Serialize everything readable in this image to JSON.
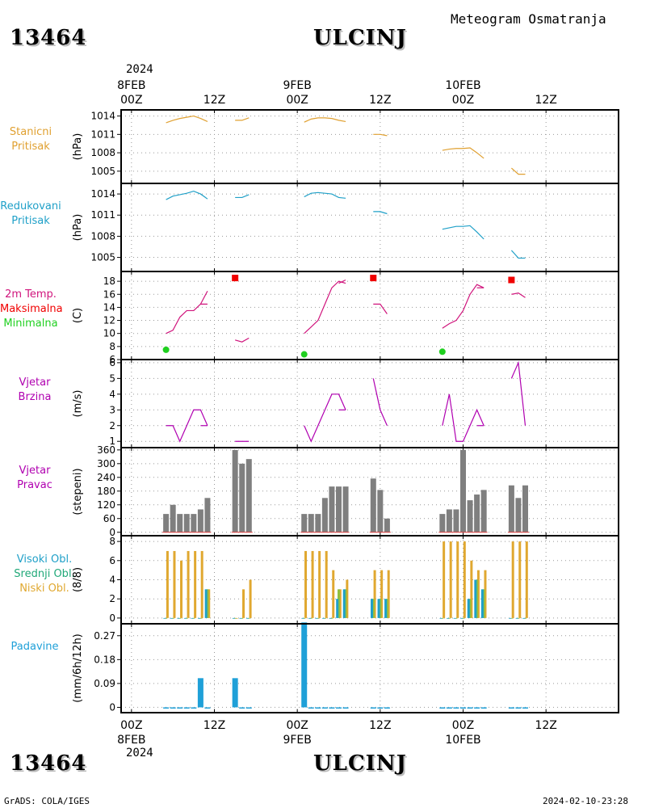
{
  "header": {
    "station_id": "13464",
    "station_name": "ULCINJ",
    "product": "Meteogram Osmatranja"
  },
  "footer": {
    "station_id": "13464",
    "station_name": "ULCINJ",
    "credit": "GrADS: COLA/IGES",
    "timestamp": "2024-02-10-23:28"
  },
  "time_axis": {
    "year": "2024",
    "top_dates": [
      "8FEB",
      "9FEB",
      "10FEB"
    ],
    "hour_labels": [
      "00Z",
      "12Z",
      "00Z",
      "12Z",
      "00Z",
      "12Z"
    ],
    "hour_values": [
      0,
      12,
      24,
      36,
      48,
      60
    ],
    "range": [
      -1.5,
      70.5
    ]
  },
  "colors": {
    "pressure": "#e0a030",
    "reduced": "#1fa0c8",
    "temp": "#d0147c",
    "tmax": "#f00000",
    "tmin": "#20d020",
    "wind": "#b000b0",
    "dir": "#7f7f7f",
    "high": "#1fa0c8",
    "mid": "#90c040",
    "low": "#e0a830",
    "precip": "#1fa0d8",
    "panel_text_pressure": "#e0a030",
    "panel_text_reduced": "#1fa0c8",
    "panel_text_wind": "#b000b0",
    "panel_text_dir": "#b000b0",
    "panel_text_precip": "#1fa0d8"
  },
  "panels": {
    "station_pressure": {
      "label1": "Stanicni",
      "label2": "Pritisak",
      "unit": "(hPa)"
    },
    "reduced_pressure": {
      "label1": "Redukovani",
      "label2": "Pritisak",
      "unit": "(hPa)"
    },
    "temperature": {
      "label1": "2m Temp.",
      "label2": "Maksimalna",
      "label3": "Minimalna",
      "unit": "(C)"
    },
    "wind_speed": {
      "label1": "Vjetar",
      "label2": "Brzina",
      "unit": "(m/s)"
    },
    "wind_dir": {
      "label1": "Vjetar",
      "label2": "Pravac",
      "unit": "(stepeni)"
    },
    "clouds": {
      "label1": "Visoki Obl.",
      "label2": "Srednji Obl.",
      "label3": "Niski Obl.",
      "unit": "(8/8)"
    },
    "precip": {
      "label1": "Padavine",
      "unit": "(mm/6h/12h)"
    }
  },
  "chart_data": [
    {
      "type": "line",
      "name": "station_pressure",
      "ylim": [
        1003.0,
        1015.0
      ],
      "ticks": [
        1005,
        1008,
        1011,
        1014
      ],
      "segments": [
        {
          "x": [
            5,
            6,
            7,
            8,
            9,
            10,
            11
          ],
          "y": [
            1012.9,
            1013.3,
            1013.6,
            1013.8,
            1014.0,
            1013.6,
            1013.1
          ]
        },
        {
          "x": [
            15,
            16,
            17
          ],
          "y": [
            1013.3,
            1013.3,
            1013.7
          ]
        },
        {
          "x": [
            25,
            26,
            27,
            28,
            29,
            30,
            31
          ],
          "y": [
            1013.0,
            1013.5,
            1013.7,
            1013.7,
            1013.6,
            1013.3,
            1013.1
          ]
        },
        {
          "x": [
            35,
            36,
            37
          ],
          "y": [
            1011.0,
            1011.0,
            1010.8
          ]
        },
        {
          "x": [
            45,
            46,
            47,
            48,
            49,
            50,
            51
          ],
          "y": [
            1008.4,
            1008.6,
            1008.7,
            1008.7,
            1008.8,
            1008.0,
            1007.1
          ]
        },
        {
          "x": [
            55,
            56,
            57
          ],
          "y": [
            1005.5,
            1004.5,
            1004.5
          ]
        }
      ]
    },
    {
      "type": "line",
      "name": "reduced_pressure",
      "ylim": [
        1003.0,
        1015.5
      ],
      "ticks": [
        1005,
        1008,
        1011,
        1014
      ],
      "segments": [
        {
          "x": [
            5,
            6,
            7,
            8,
            9,
            10,
            11
          ],
          "y": [
            1013.2,
            1013.7,
            1013.9,
            1014.1,
            1014.4,
            1014.0,
            1013.3
          ]
        },
        {
          "x": [
            15,
            16,
            17
          ],
          "y": [
            1013.5,
            1013.5,
            1013.9
          ]
        },
        {
          "x": [
            25,
            26,
            27,
            28,
            29,
            30,
            31
          ],
          "y": [
            1013.6,
            1014.1,
            1014.2,
            1014.1,
            1014.0,
            1013.5,
            1013.4
          ]
        },
        {
          "x": [
            35,
            36,
            37
          ],
          "y": [
            1011.5,
            1011.5,
            1011.2
          ]
        },
        {
          "x": [
            45,
            46,
            47,
            48,
            49,
            50,
            51
          ],
          "y": [
            1009.0,
            1009.2,
            1009.4,
            1009.4,
            1009.5,
            1008.6,
            1007.6
          ]
        },
        {
          "x": [
            55,
            56,
            57
          ],
          "y": [
            1006.0,
            1004.9,
            1004.9
          ]
        }
      ]
    },
    {
      "type": "line",
      "name": "temperature",
      "ylim": [
        6,
        19.5
      ],
      "ticks": [
        6,
        8,
        10,
        12,
        14,
        16,
        18
      ],
      "segments": [
        {
          "x": [
            5,
            6,
            7,
            8,
            9,
            10,
            11
          ],
          "y": [
            10.0,
            10.5,
            12.5,
            13.5,
            13.5,
            14.5,
            14.5
          ]
        },
        {
          "x": [
            10,
            11
          ],
          "y": [
            14.5,
            16.5
          ]
        },
        {
          "x": [
            15,
            16,
            17
          ],
          "y": [
            9.0,
            8.7,
            9.3
          ]
        },
        {
          "x": [
            25,
            26,
            27,
            28,
            29,
            30,
            31
          ],
          "y": [
            10.0,
            11.0,
            12.0,
            14.5,
            17.0,
            18.0,
            17.7
          ]
        },
        {
          "x": [
            30,
            31
          ],
          "y": [
            17.7,
            18.2
          ]
        },
        {
          "x": [
            35,
            36,
            37
          ],
          "y": [
            14.5,
            14.5,
            13.0
          ]
        },
        {
          "x": [
            45,
            46,
            47,
            48,
            49,
            50,
            51
          ],
          "y": [
            10.8,
            11.5,
            12.0,
            13.5,
            16.0,
            17.5,
            17.0
          ]
        },
        {
          "x": [
            50,
            51
          ],
          "y": [
            17.0,
            17.0
          ]
        },
        {
          "x": [
            55,
            56,
            57
          ],
          "y": [
            16.0,
            16.2,
            15.5
          ]
        }
      ],
      "tmax": [
        {
          "x": 15,
          "y": 18.5
        },
        {
          "x": 35,
          "y": 18.5
        },
        {
          "x": 55,
          "y": 18.2
        }
      ],
      "tmin": [
        {
          "x": 5,
          "y": 7.5
        },
        {
          "x": 25,
          "y": 6.8
        },
        {
          "x": 45,
          "y": 7.2
        }
      ]
    },
    {
      "type": "line",
      "name": "wind_speed",
      "ylim": [
        0.6,
        6.2
      ],
      "ticks": [
        1,
        2,
        3,
        4,
        5,
        6
      ],
      "segments": [
        {
          "x": [
            5,
            6,
            7,
            8,
            9,
            10,
            11
          ],
          "y": [
            2,
            2,
            1,
            2,
            3,
            3,
            2
          ]
        },
        {
          "x": [
            10,
            11
          ],
          "y": [
            2,
            2
          ]
        },
        {
          "x": [
            15,
            16,
            17
          ],
          "y": [
            1,
            1,
            1
          ]
        },
        {
          "x": [
            25,
            26,
            27,
            28,
            29,
            30,
            31
          ],
          "y": [
            2,
            1,
            2,
            3,
            4,
            4,
            3
          ]
        },
        {
          "x": [
            30,
            31
          ],
          "y": [
            3,
            3
          ]
        },
        {
          "x": [
            35,
            36,
            37
          ],
          "y": [
            5,
            3,
            2
          ]
        },
        {
          "x": [
            45,
            46,
            47,
            48,
            49,
            50,
            51
          ],
          "y": [
            2,
            4,
            1,
            1,
            2,
            3,
            2
          ]
        },
        {
          "x": [
            50,
            51
          ],
          "y": [
            2,
            2
          ]
        },
        {
          "x": [
            55,
            56,
            57
          ],
          "y": [
            5,
            6,
            2
          ]
        }
      ]
    },
    {
      "type": "bar",
      "name": "wind_dir",
      "ylim": [
        -15,
        370
      ],
      "ticks": [
        0,
        60,
        120,
        180,
        240,
        300,
        360
      ],
      "x": [
        5,
        6,
        7,
        8,
        9,
        10,
        11,
        15,
        16,
        17,
        25,
        26,
        27,
        28,
        29,
        30,
        31,
        35,
        36,
        37,
        45,
        46,
        47,
        48,
        49,
        50,
        51,
        55,
        56,
        57
      ],
      "values": [
        80,
        120,
        80,
        80,
        80,
        100,
        150,
        360,
        300,
        320,
        80,
        80,
        80,
        150,
        200,
        200,
        200,
        235,
        185,
        60,
        80,
        100,
        100,
        360,
        140,
        165,
        185,
        205,
        150,
        205
      ]
    },
    {
      "type": "bar",
      "name": "clouds",
      "ylim": [
        -0.6,
        8.6
      ],
      "ticks": [
        0,
        2,
        4,
        6,
        8
      ],
      "x": [
        5,
        6,
        7,
        8,
        9,
        10,
        11,
        15,
        16,
        17,
        25,
        26,
        27,
        28,
        29,
        30,
        31,
        35,
        36,
        37,
        45,
        46,
        47,
        48,
        49,
        50,
        51,
        55,
        56,
        57
      ],
      "series": [
        {
          "name": "Visoki Obl.",
          "values": [
            0,
            0,
            0,
            0,
            0,
            0,
            3,
            0,
            0,
            0,
            0,
            0,
            0,
            0,
            0,
            2,
            3,
            2,
            2,
            2,
            0,
            0,
            0,
            0,
            2,
            4,
            3,
            0,
            0,
            0
          ]
        },
        {
          "name": "Srednji Obl.",
          "values": [
            0,
            0,
            0,
            0,
            0,
            0,
            3,
            0,
            0,
            0,
            0,
            0,
            0,
            0,
            0,
            3,
            3,
            2,
            2,
            2,
            0,
            0,
            0,
            0,
            2,
            4,
            3,
            0,
            0,
            0
          ]
        },
        {
          "name": "Niski Obl.",
          "values": [
            7,
            7,
            6,
            7,
            7,
            7,
            3,
            0,
            3,
            4,
            7,
            7,
            7,
            7,
            5,
            3,
            4,
            5,
            5,
            5,
            8,
            8,
            8,
            8,
            6,
            5,
            5,
            8,
            8,
            8
          ]
        }
      ]
    },
    {
      "type": "bar",
      "name": "precip",
      "ylim": [
        -0.02,
        0.315
      ],
      "ticks": [
        0,
        0.09,
        0.18,
        0.27
      ],
      "tick_labels": [
        "0",
        "0.09",
        "0.18",
        "0.27"
      ],
      "x": [
        5,
        6,
        7,
        8,
        9,
        10,
        11,
        15,
        16,
        17,
        25,
        26,
        27,
        28,
        29,
        30,
        31,
        35,
        36,
        37,
        45,
        46,
        47,
        48,
        49,
        50,
        51,
        55,
        56,
        57
      ],
      "values": [
        0,
        0,
        0,
        0,
        0,
        0.11,
        0,
        0.11,
        0,
        0,
        0.32,
        0,
        0,
        0,
        0,
        0,
        0,
        0,
        0,
        0,
        0,
        0,
        0,
        0,
        0,
        0,
        0,
        0,
        0,
        0
      ]
    }
  ]
}
